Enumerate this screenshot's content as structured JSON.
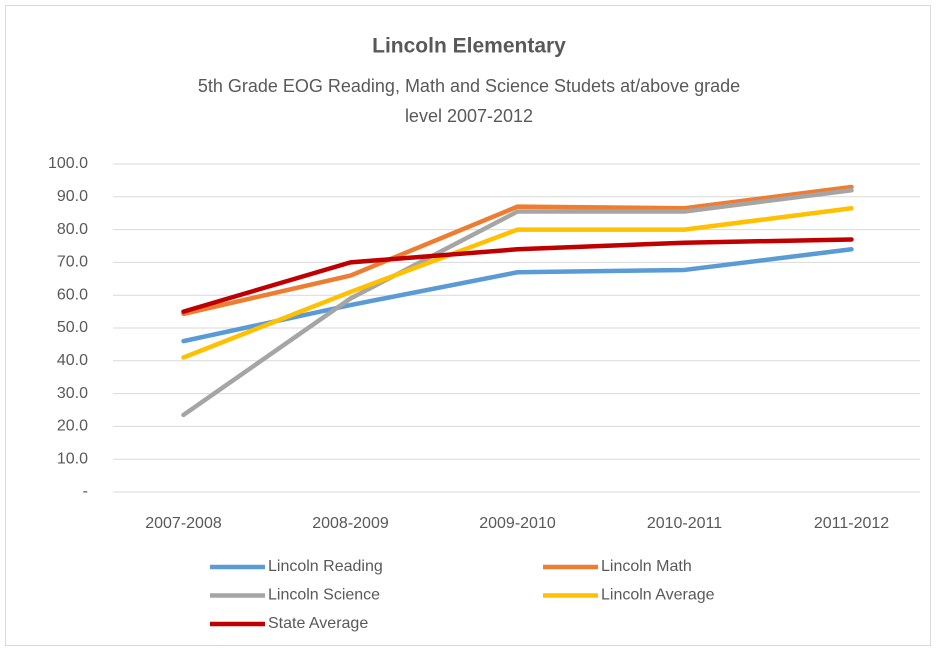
{
  "chart_data": {
    "type": "line",
    "title": "Lincoln Elementary",
    "subtitle": [
      "5th Grade EOG Reading, Math and Science Studets at/above grade",
      "level 2007-2012"
    ],
    "categories": [
      "2007-2008",
      "2008-2009",
      "2009-2010",
      "2010-2011",
      "2011-2012"
    ],
    "series": [
      {
        "name": "Lincoln Reading",
        "color": "#5b9bd5",
        "values": [
          46,
          57,
          67,
          67.7,
          74
        ]
      },
      {
        "name": "Lincoln Math",
        "color": "#ed7d31",
        "values": [
          54.3,
          66,
          87,
          86.5,
          93
        ]
      },
      {
        "name": "Lincoln Science",
        "color": "#a5a5a5",
        "values": [
          23.5,
          59,
          85.5,
          85.5,
          92
        ]
      },
      {
        "name": "Lincoln Average",
        "color": "#ffc000",
        "values": [
          41,
          61,
          80,
          80,
          86.5
        ]
      },
      {
        "name": "State Average",
        "color": "#c00000",
        "values": [
          55,
          70,
          74,
          76,
          77
        ]
      }
    ],
    "ylim": [
      0,
      100
    ],
    "yticks": [
      {
        "value": 0,
        "label": "-"
      },
      {
        "value": 10,
        "label": "10.0"
      },
      {
        "value": 20,
        "label": "20.0"
      },
      {
        "value": 30,
        "label": "30.0"
      },
      {
        "value": 40,
        "label": "40.0"
      },
      {
        "value": 50,
        "label": "50.0"
      },
      {
        "value": 60,
        "label": "60.0"
      },
      {
        "value": 70,
        "label": "70.0"
      },
      {
        "value": 80,
        "label": "80.0"
      },
      {
        "value": 90,
        "label": "90.0"
      },
      {
        "value": 100,
        "label": "100.0"
      }
    ],
    "grid": true,
    "legend": "bottom"
  }
}
